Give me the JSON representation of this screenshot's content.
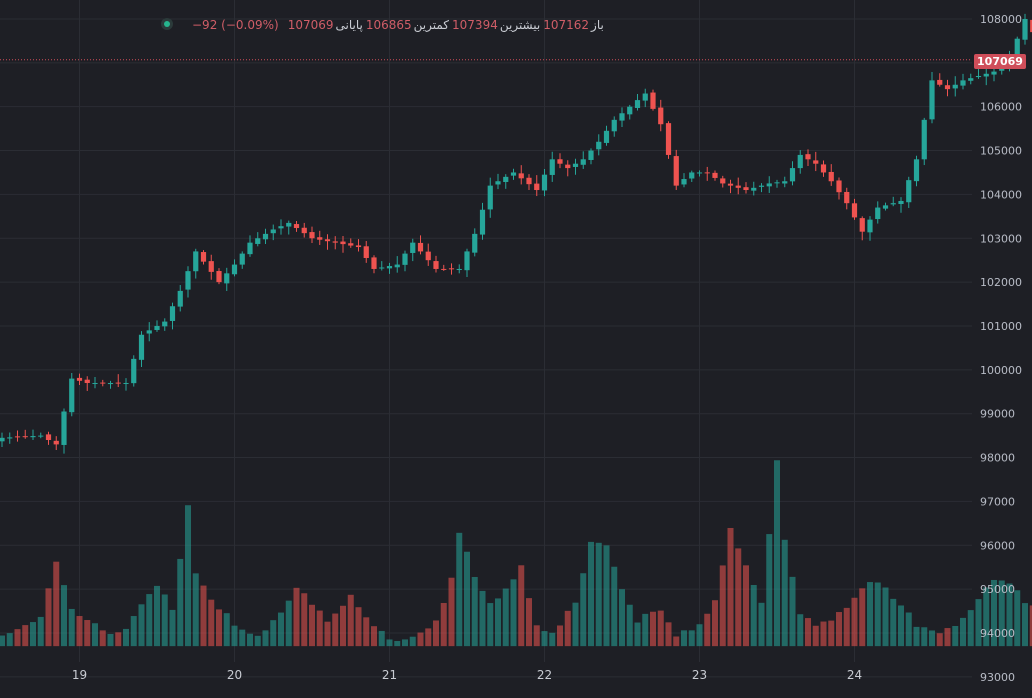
{
  "legend": {
    "open_label": "باز",
    "open_value": "107162",
    "high_label": "بیشترین",
    "high_value": "107394",
    "low_label": "کمترین",
    "low_value": "106865",
    "close_label": "پایانی",
    "close_value": "107069",
    "change": "−92 (−0.09%)"
  },
  "last_price_label": "107069",
  "colors": {
    "up": "#26a69a",
    "down": "#ef5350",
    "background": "#1e1f25",
    "grid": "#2b2d34"
  },
  "chart_data": {
    "type": "candlestick",
    "x_ticks": [
      "19",
      "20",
      "21",
      "22",
      "23",
      "24"
    ],
    "y_ticks": [
      108000,
      107000,
      106000,
      105000,
      104000,
      103000,
      102000,
      101000,
      100000,
      99000,
      98000,
      97000,
      96000,
      95000,
      94000,
      93000
    ],
    "ylim": [
      92700,
      108250
    ],
    "last_price": 107069,
    "anchors": [
      [
        0,
        98450
      ],
      [
        5,
        98500
      ],
      [
        7,
        98300
      ],
      [
        9,
        99800
      ],
      [
        11,
        99700
      ],
      [
        16,
        99700
      ],
      [
        18,
        100800
      ],
      [
        21,
        101100
      ],
      [
        23,
        101800
      ],
      [
        25,
        102700
      ],
      [
        28,
        102000
      ],
      [
        30,
        102400
      ],
      [
        32,
        102900
      ],
      [
        35,
        103200
      ],
      [
        37,
        103350
      ],
      [
        40,
        103000
      ],
      [
        43,
        102900
      ],
      [
        46,
        102800
      ],
      [
        48,
        102300
      ],
      [
        51,
        102400
      ],
      [
        53,
        102900
      ],
      [
        56,
        102300
      ],
      [
        59,
        102300
      ],
      [
        61,
        103100
      ],
      [
        63,
        104200
      ],
      [
        66,
        104500
      ],
      [
        69,
        104100
      ],
      [
        71,
        104800
      ],
      [
        73,
        104600
      ],
      [
        75,
        104800
      ],
      [
        77,
        105200
      ],
      [
        79,
        105700
      ],
      [
        81,
        106000
      ],
      [
        83,
        106300
      ],
      [
        85,
        105600
      ],
      [
        87,
        104200
      ],
      [
        89,
        104500
      ],
      [
        91,
        104500
      ],
      [
        93,
        104250
      ],
      [
        96,
        104100
      ],
      [
        99,
        104250
      ],
      [
        101,
        104300
      ],
      [
        103,
        104900
      ],
      [
        105,
        104700
      ],
      [
        107,
        104300
      ],
      [
        109,
        103800
      ],
      [
        111,
        103150
      ],
      [
        113,
        103700
      ],
      [
        116,
        103850
      ],
      [
        118,
        104800
      ],
      [
        120,
        106600
      ],
      [
        122,
        106400
      ],
      [
        124,
        106600
      ],
      [
        126,
        106700
      ],
      [
        128,
        106800
      ],
      [
        130,
        107100
      ],
      [
        132,
        108000
      ],
      [
        134,
        107400
      ],
      [
        135,
        107069
      ]
    ],
    "volume_anchors": [
      [
        0,
        94000
      ],
      [
        5,
        94300
      ],
      [
        7,
        95600
      ],
      [
        9,
        94600
      ],
      [
        11,
        94300
      ],
      [
        14,
        93950
      ],
      [
        16,
        94100
      ],
      [
        18,
        94600
      ],
      [
        20,
        95100
      ],
      [
        22,
        94600
      ],
      [
        24,
        96900
      ],
      [
        25,
        95300
      ],
      [
        27,
        94800
      ],
      [
        30,
        94200
      ],
      [
        33,
        93950
      ],
      [
        36,
        94500
      ],
      [
        38,
        95100
      ],
      [
        40,
        94700
      ],
      [
        42,
        94200
      ],
      [
        45,
        94800
      ],
      [
        47,
        94300
      ],
      [
        50,
        93880
      ],
      [
        53,
        93900
      ],
      [
        56,
        94300
      ],
      [
        58,
        95200
      ],
      [
        59,
        96300
      ],
      [
        61,
        95300
      ],
      [
        63,
        94700
      ],
      [
        65,
        95000
      ],
      [
        67,
        95500
      ],
      [
        69,
        94200
      ],
      [
        71,
        94000
      ],
      [
        74,
        94700
      ],
      [
        76,
        96100
      ],
      [
        78,
        96000
      ],
      [
        80,
        95000
      ],
      [
        82,
        94300
      ],
      [
        85,
        94500
      ],
      [
        87,
        93950
      ],
      [
        90,
        94200
      ],
      [
        92,
        94800
      ],
      [
        94,
        96400
      ],
      [
        96,
        95500
      ],
      [
        98,
        94700
      ],
      [
        100,
        97900
      ],
      [
        101,
        96200
      ],
      [
        103,
        94500
      ],
      [
        105,
        94100
      ],
      [
        107,
        94300
      ],
      [
        110,
        94800
      ],
      [
        112,
        95200
      ],
      [
        114,
        95000
      ],
      [
        116,
        94700
      ],
      [
        118,
        94200
      ],
      [
        120,
        94000
      ],
      [
        122,
        94100
      ],
      [
        124,
        94300
      ],
      [
        126,
        94800
      ],
      [
        128,
        95200
      ],
      [
        130,
        95100
      ],
      [
        132,
        94700
      ],
      [
        135,
        94600
      ]
    ]
  }
}
